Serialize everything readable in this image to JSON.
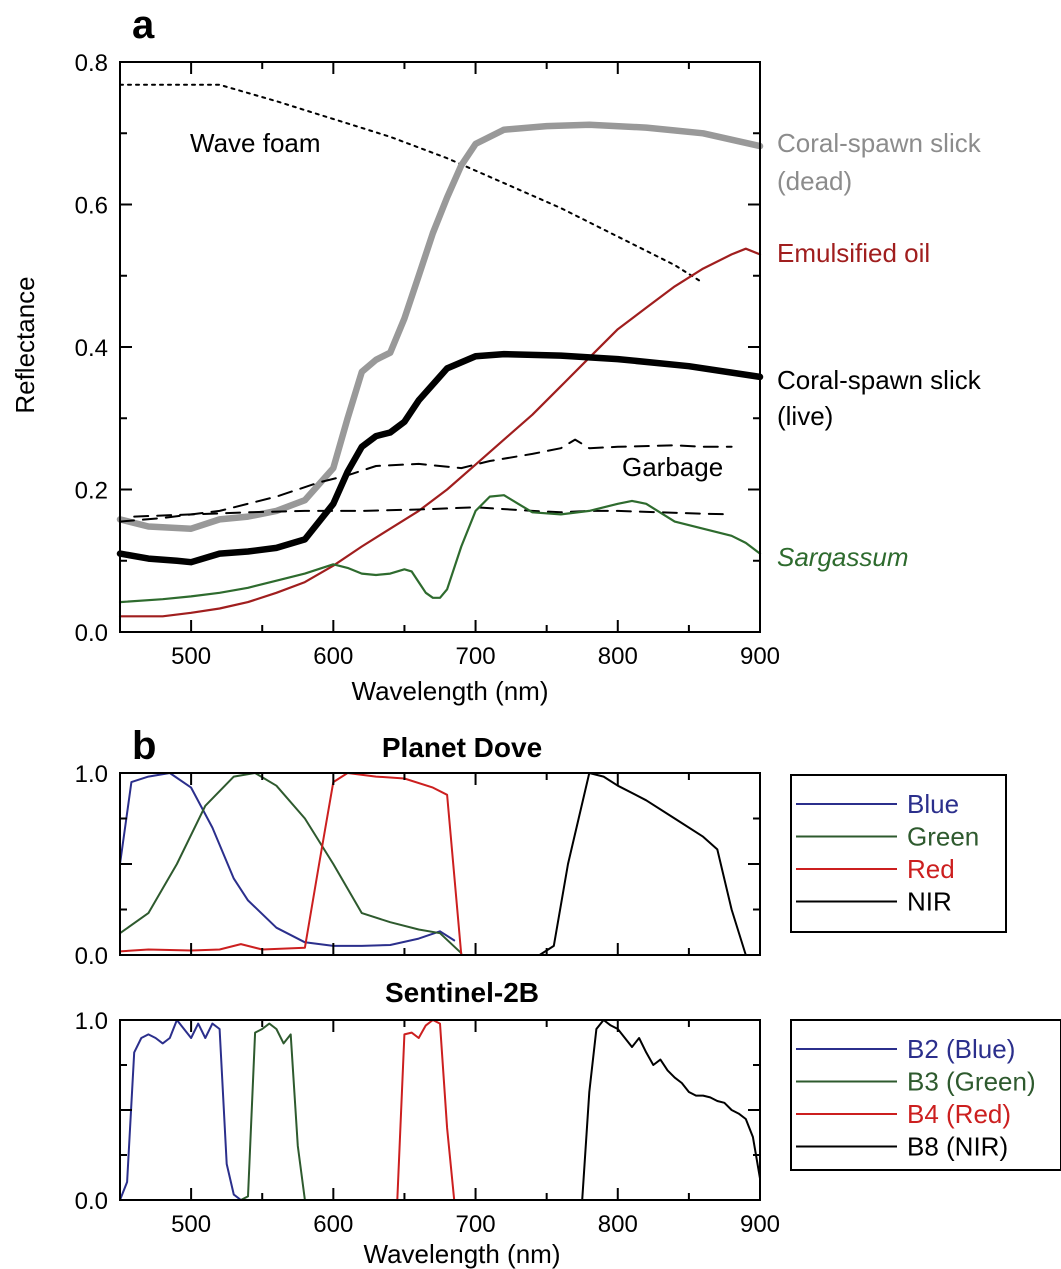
{
  "chart_data": [
    {
      "panel_label": "a",
      "type": "line",
      "title": "",
      "xlabel": "Wavelength (nm)",
      "ylabel": "Reflectance",
      "xlim": [
        450,
        900
      ],
      "ylim": [
        0,
        0.8
      ],
      "xticks": [
        500,
        600,
        700,
        800,
        900
      ],
      "yticks": [
        0.0,
        0.2,
        0.4,
        0.6,
        0.8
      ],
      "xtick_labels": [
        "500",
        "600",
        "700",
        "800",
        "900"
      ],
      "ytick_labels": [
        "0.0",
        "0.2",
        "0.4",
        "0.6",
        "0.8"
      ],
      "grid": false,
      "series": [
        {
          "label": "Wave foam",
          "label_position": "inside-top-left",
          "color": "#000000",
          "style": "dotted",
          "width": "thin",
          "x": [
            450,
            500,
            520,
            560,
            600,
            640,
            680,
            720,
            760,
            800,
            840,
            860
          ],
          "y": [
            0.768,
            0.768,
            0.768,
            0.745,
            0.72,
            0.695,
            0.665,
            0.63,
            0.595,
            0.555,
            0.515,
            0.49
          ]
        },
        {
          "label_lines": [
            "Coral-spawn slick",
            "(dead)"
          ],
          "color": "#999999",
          "style": "solid",
          "width": "thick",
          "x": [
            450,
            470,
            500,
            520,
            540,
            560,
            580,
            600,
            610,
            620,
            630,
            640,
            650,
            660,
            670,
            680,
            690,
            700,
            720,
            750,
            780,
            820,
            860,
            900
          ],
          "y": [
            0.158,
            0.148,
            0.145,
            0.158,
            0.162,
            0.17,
            0.185,
            0.23,
            0.3,
            0.365,
            0.382,
            0.392,
            0.44,
            0.5,
            0.56,
            0.61,
            0.655,
            0.685,
            0.705,
            0.71,
            0.712,
            0.708,
            0.7,
            0.682
          ]
        },
        {
          "label": "Emulsified oil",
          "color": "#a01e1e",
          "style": "solid",
          "width": "normal",
          "x": [
            450,
            480,
            500,
            520,
            540,
            560,
            580,
            600,
            620,
            640,
            660,
            680,
            700,
            720,
            740,
            760,
            780,
            800,
            820,
            840,
            860,
            880,
            890,
            900
          ],
          "y": [
            0.022,
            0.022,
            0.027,
            0.033,
            0.042,
            0.055,
            0.07,
            0.093,
            0.12,
            0.145,
            0.17,
            0.2,
            0.235,
            0.27,
            0.305,
            0.345,
            0.385,
            0.425,
            0.455,
            0.485,
            0.51,
            0.53,
            0.538,
            0.53
          ]
        },
        {
          "label_lines": [
            "Coral-spawn slick",
            "(live)"
          ],
          "color": "#000000",
          "style": "solid",
          "width": "thick",
          "x": [
            450,
            470,
            490,
            500,
            520,
            540,
            560,
            580,
            600,
            610,
            620,
            630,
            640,
            650,
            660,
            680,
            700,
            720,
            760,
            800,
            850,
            900
          ],
          "y": [
            0.11,
            0.103,
            0.1,
            0.098,
            0.11,
            0.113,
            0.118,
            0.13,
            0.18,
            0.225,
            0.26,
            0.275,
            0.28,
            0.295,
            0.325,
            0.37,
            0.387,
            0.39,
            0.388,
            0.383,
            0.373,
            0.358
          ]
        },
        {
          "label": "Garbage",
          "color": "#000000",
          "style": "dashed",
          "width": "thin",
          "x": [
            450,
            480,
            520,
            560,
            590,
            610,
            630,
            660,
            690,
            710,
            740,
            760,
            770,
            780,
            800,
            840,
            860,
            880
          ],
          "y": [
            0.155,
            0.16,
            0.17,
            0.19,
            0.21,
            0.22,
            0.233,
            0.236,
            0.23,
            0.24,
            0.25,
            0.258,
            0.27,
            0.258,
            0.26,
            0.262,
            0.26,
            0.26
          ]
        },
        {
          "label": "",
          "color": "#000000",
          "style": "dashed",
          "width": "thin",
          "x": [
            460,
            500,
            540,
            580,
            620,
            660,
            700,
            740,
            760,
            780,
            800,
            830,
            860,
            880
          ],
          "y": [
            0.162,
            0.165,
            0.168,
            0.17,
            0.17,
            0.172,
            0.175,
            0.17,
            0.168,
            0.17,
            0.17,
            0.168,
            0.166,
            0.165
          ]
        },
        {
          "label": "Sargassum",
          "label_italic": true,
          "color": "#2e6b2e",
          "style": "solid",
          "width": "normal",
          "x": [
            450,
            480,
            500,
            520,
            540,
            560,
            580,
            600,
            610,
            620,
            630,
            640,
            650,
            655,
            660,
            665,
            670,
            675,
            680,
            690,
            700,
            710,
            720,
            730,
            740,
            760,
            780,
            800,
            810,
            820,
            840,
            860,
            880,
            890,
            900
          ],
          "y": [
            0.042,
            0.046,
            0.05,
            0.055,
            0.062,
            0.072,
            0.082,
            0.095,
            0.09,
            0.082,
            0.08,
            0.082,
            0.088,
            0.085,
            0.07,
            0.055,
            0.048,
            0.048,
            0.06,
            0.12,
            0.17,
            0.19,
            0.192,
            0.18,
            0.168,
            0.165,
            0.17,
            0.18,
            0.184,
            0.18,
            0.155,
            0.145,
            0.135,
            0.125,
            0.11
          ]
        }
      ]
    },
    {
      "panel_label": "b",
      "type": "line",
      "title": "Planet Dove",
      "xlabel": "",
      "ylabel": "",
      "xlim": [
        450,
        900
      ],
      "ylim": [
        0,
        1
      ],
      "yticks": [
        0,
        0.5,
        1
      ],
      "ytick_labels": [
        "0.0",
        "",
        "1.0"
      ],
      "legend_position": "right",
      "series": [
        {
          "name": "Blue",
          "color": "#2b2f8c",
          "x": [
            450,
            458,
            470,
            485,
            500,
            515,
            530,
            540,
            560,
            580,
            600,
            620,
            640,
            660,
            675,
            685
          ],
          "y": [
            0.5,
            0.95,
            0.98,
            1.0,
            0.92,
            0.7,
            0.42,
            0.3,
            0.15,
            0.07,
            0.05,
            0.05,
            0.055,
            0.09,
            0.13,
            0.08
          ]
        },
        {
          "name": "Green",
          "color": "#2e5a2e",
          "x": [
            450,
            470,
            490,
            510,
            530,
            545,
            560,
            580,
            600,
            620,
            640,
            660,
            675,
            690
          ],
          "y": [
            0.12,
            0.23,
            0.5,
            0.82,
            0.98,
            1.0,
            0.93,
            0.75,
            0.5,
            0.23,
            0.18,
            0.14,
            0.12,
            0.01
          ]
        },
        {
          "name": "Red",
          "color": "#cc1f1f",
          "x": [
            450,
            470,
            500,
            520,
            535,
            550,
            580,
            590,
            600,
            610,
            630,
            650,
            670,
            680,
            690
          ],
          "y": [
            0.02,
            0.03,
            0.025,
            0.03,
            0.06,
            0.03,
            0.04,
            0.5,
            0.95,
            1.0,
            0.98,
            0.97,
            0.92,
            0.88,
            0.0
          ]
        },
        {
          "name": "NIR",
          "color": "#000000",
          "x": [
            450,
            745,
            755,
            765,
            780,
            790,
            800,
            820,
            840,
            860,
            870,
            880,
            890,
            900
          ],
          "y": [
            0,
            0,
            0.05,
            0.5,
            1.0,
            0.98,
            0.93,
            0.85,
            0.75,
            0.65,
            0.58,
            0.25,
            0.0,
            0
          ]
        }
      ]
    },
    {
      "panel_label": "",
      "type": "line",
      "title": "Sentinel-2B",
      "xlabel": "Wavelength (nm)",
      "ylabel": "",
      "xlim": [
        450,
        900
      ],
      "ylim": [
        0,
        1
      ],
      "xticks": [
        500,
        600,
        700,
        800,
        900
      ],
      "xtick_labels": [
        "500",
        "600",
        "700",
        "800",
        "900"
      ],
      "yticks": [
        0,
        0.5,
        1
      ],
      "ytick_labels": [
        "0.0",
        "",
        "1.0"
      ],
      "legend_position": "right",
      "series": [
        {
          "name": "B2 (Blue)",
          "color": "#2b2f8c",
          "x": [
            450,
            455,
            460,
            465,
            470,
            475,
            480,
            485,
            490,
            495,
            500,
            505,
            510,
            515,
            520,
            525,
            530,
            535
          ],
          "y": [
            0,
            0.1,
            0.82,
            0.9,
            0.92,
            0.9,
            0.87,
            0.9,
            1.0,
            0.95,
            0.9,
            0.98,
            0.9,
            0.98,
            0.95,
            0.2,
            0.03,
            0
          ]
        },
        {
          "name": "B3 (Green)",
          "color": "#2e5a2e",
          "x": [
            535,
            540,
            545,
            550,
            555,
            560,
            565,
            570,
            575,
            580
          ],
          "y": [
            0,
            0.02,
            0.93,
            0.95,
            0.98,
            0.95,
            0.87,
            0.92,
            0.3,
            0
          ]
        },
        {
          "name": "B4 (Red)",
          "color": "#cc1f1f",
          "x": [
            645,
            650,
            655,
            660,
            665,
            670,
            675,
            680,
            685
          ],
          "y": [
            0,
            0.92,
            0.93,
            0.9,
            0.97,
            1.0,
            0.98,
            0.4,
            0
          ]
        },
        {
          "name": "B8 (NIR)",
          "color": "#000000",
          "x": [
            775,
            780,
            785,
            790,
            795,
            800,
            805,
            810,
            815,
            820,
            825,
            830,
            835,
            840,
            845,
            850,
            855,
            860,
            865,
            870,
            875,
            880,
            885,
            890,
            895,
            900
          ],
          "y": [
            0,
            0.6,
            0.95,
            1.0,
            0.97,
            0.95,
            0.9,
            0.85,
            0.9,
            0.82,
            0.75,
            0.78,
            0.72,
            0.68,
            0.65,
            0.6,
            0.58,
            0.58,
            0.57,
            0.55,
            0.54,
            0.5,
            0.48,
            0.45,
            0.35,
            0.12
          ]
        }
      ]
    }
  ]
}
